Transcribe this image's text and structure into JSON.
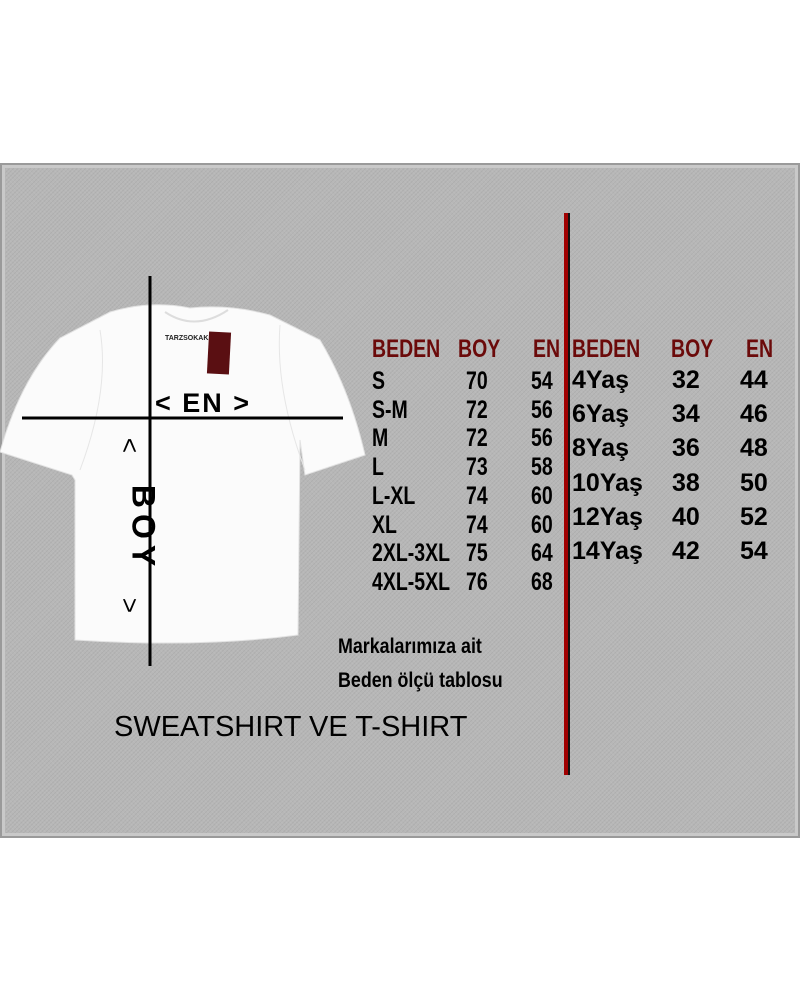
{
  "diagram": {
    "brand_tag": "TARZSOKAK",
    "width_label": "< EN >",
    "length_label": "BOY",
    "length_arrow_top": "<",
    "length_arrow_bottom": ">"
  },
  "adult_table": {
    "headers": [
      "BEDEN",
      "BOY",
      "EN"
    ],
    "rows": [
      [
        "S",
        "70",
        "54"
      ],
      [
        "S-M",
        "72",
        "56"
      ],
      [
        "M",
        "72",
        "56"
      ],
      [
        "L",
        "73",
        "58"
      ],
      [
        "L-XL",
        "74",
        "60"
      ],
      [
        "XL",
        "74",
        "60"
      ],
      [
        "2XL-3XL",
        "75",
        "64"
      ],
      [
        "4XL-5XL",
        "76",
        "68"
      ]
    ]
  },
  "kids_table": {
    "headers": [
      "BEDEN",
      "BOY",
      "EN"
    ],
    "rows": [
      [
        "4Yaş",
        "32",
        "44"
      ],
      [
        "6Yaş",
        "34",
        "46"
      ],
      [
        "8Yaş",
        "36",
        "48"
      ],
      [
        "10Yaş",
        "38",
        "50"
      ],
      [
        "12Yaş",
        "40",
        "52"
      ],
      [
        "14Yaş",
        "42",
        "54"
      ]
    ]
  },
  "note": {
    "line1": "Markalarımıza ait",
    "line2": "Beden ölçü tablosu"
  },
  "title": "SWEATSHIRT VE T-SHIRT",
  "colors": {
    "header": "#6b0a0a",
    "divider": "#a00000",
    "panel": "#b7b7b7"
  }
}
